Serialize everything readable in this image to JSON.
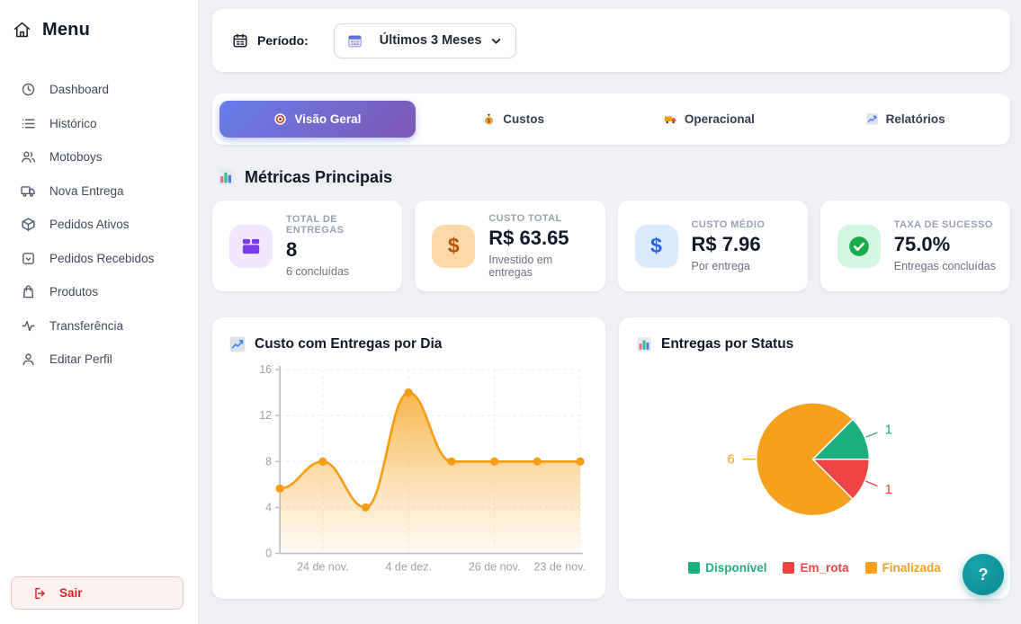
{
  "theme": {
    "page_bg": "#eef0f4",
    "accent_gradient_start": "#667eea",
    "accent_gradient_end": "#7e57b5",
    "danger": "#dc2626",
    "help_teal": "#0e8a92"
  },
  "sidebar": {
    "title": "Menu",
    "items": [
      {
        "label": "Dashboard",
        "icon": "clock-icon"
      },
      {
        "label": "Histórico",
        "icon": "list-icon"
      },
      {
        "label": "Motoboys",
        "icon": "users-icon"
      },
      {
        "label": "Nova Entrega",
        "icon": "truck-icon"
      },
      {
        "label": "Pedidos Ativos",
        "icon": "package-icon"
      },
      {
        "label": "Pedidos Recebidos",
        "icon": "inbox-icon"
      },
      {
        "label": "Produtos",
        "icon": "shopping-bag-icon"
      },
      {
        "label": "Transferência",
        "icon": "activity-icon"
      },
      {
        "label": "Editar Perfil",
        "icon": "user-icon"
      }
    ],
    "logout_label": "Sair"
  },
  "period_bar": {
    "label": "Período:",
    "selected": "Últimos 3 Meses",
    "icons": [
      "calendar-icon",
      "mini-calendar-icon",
      "chevron-down-icon"
    ]
  },
  "tabs": [
    {
      "label": "Visão Geral",
      "icon": "target-icon",
      "active": true
    },
    {
      "label": "Custos",
      "icon": "money-bag-icon",
      "active": false
    },
    {
      "label": "Operacional",
      "icon": "delivery-truck-icon",
      "active": false
    },
    {
      "label": "Relatórios",
      "icon": "chart-up-icon",
      "active": false
    }
  ],
  "metrics": {
    "section_title": "Métricas Principais",
    "section_icon": "bar-chart-icon",
    "cards": [
      {
        "label": "TOTAL DE ENTREGAS",
        "value": "8",
        "subtitle": "6 concluídas",
        "icon": "package-box-icon",
        "icon_bg": "#f3e8ff",
        "icon_color": "#7c3aed"
      },
      {
        "label": "CUSTO TOTAL",
        "value": "R$ 63.65",
        "subtitle": "Investido em entregas",
        "icon": "dollar-icon",
        "icon_bg": "#fcd9a7",
        "icon_color": "#b45309"
      },
      {
        "label": "CUSTO MÉDIO",
        "value": "R$ 7.96",
        "subtitle": "Por entrega",
        "icon": "dollar-icon",
        "icon_bg": "#dbeafe",
        "icon_color": "#2563eb"
      },
      {
        "label": "TAXA DE SUCESSO",
        "value": "75.0%",
        "subtitle": "Entregas concluídas",
        "icon": "check-circle-icon",
        "icon_bg": "#d4f7e3",
        "icon_color": "#1ba94c"
      }
    ]
  },
  "chart_data": [
    {
      "type": "area",
      "title": "Custo com Entregas por Dia",
      "title_icon": "chart-up-icon",
      "values": [
        5.65,
        8,
        4,
        14,
        8,
        8,
        8,
        8
      ],
      "x_ticks": [
        "24 de nov.",
        "4 de dez.",
        "26 de nov.",
        "23 de nov."
      ],
      "x_tick_indices": [
        1,
        3,
        5,
        7
      ],
      "ylabel": "",
      "xlabel": "",
      "ylim": [
        0,
        16
      ],
      "y_ticks": [
        0,
        4,
        8,
        12,
        16
      ],
      "grid": true,
      "line_color": "#f49d15",
      "fill_color": "#f6a523"
    },
    {
      "type": "pie",
      "title": "Entregas por Status",
      "title_icon": "bar-chart-icon",
      "labels": [
        "Disponível",
        "Em_rota",
        "Finalizada"
      ],
      "values": [
        1,
        1,
        6
      ],
      "data_labels": [
        "1",
        "1",
        "6"
      ],
      "colors": [
        "#1cb081",
        "#ef4444",
        "#f5a11d"
      ],
      "start_angle_deg": 45,
      "legend_position": "bottom"
    }
  ],
  "help_button": {
    "label": "?"
  }
}
